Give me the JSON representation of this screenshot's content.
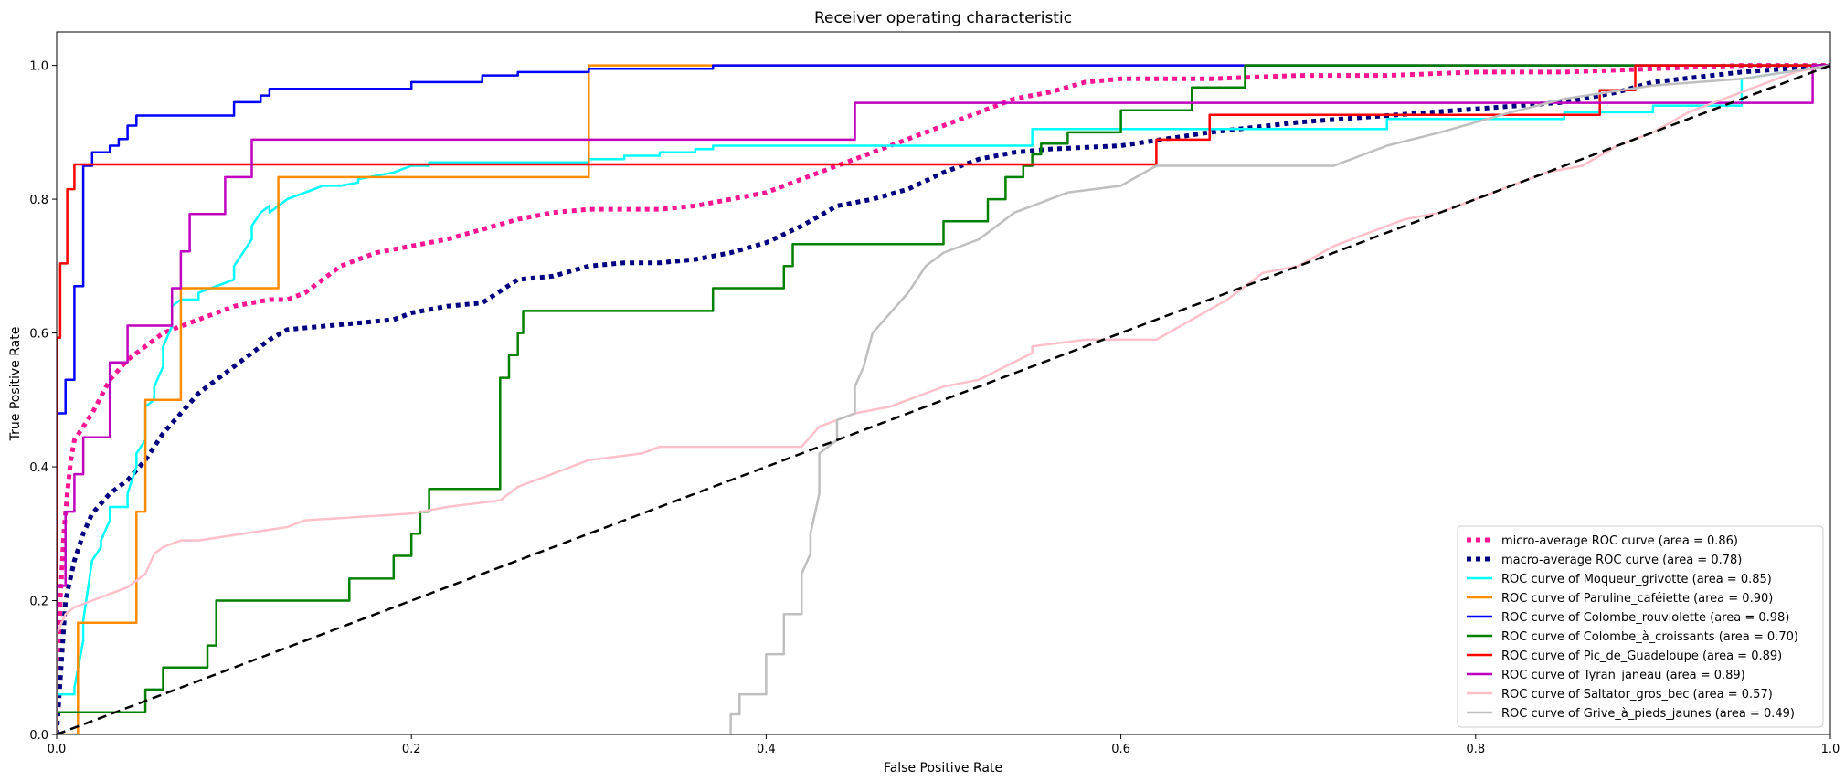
{
  "chart_data": {
    "type": "line",
    "title": "Receiver operating characteristic",
    "xlabel": "False Positive Rate",
    "ylabel": "True Positive Rate",
    "xlim": [
      0.0,
      1.0
    ],
    "ylim": [
      0.0,
      1.05
    ],
    "xticks": [
      "0.0",
      "0.2",
      "0.4",
      "0.6",
      "0.8",
      "1.0"
    ],
    "yticks": [
      "0.0",
      "0.2",
      "0.4",
      "0.6",
      "0.8",
      "1.0"
    ],
    "xtick_values": [
      0.0,
      0.2,
      0.4,
      0.6,
      0.8,
      1.0
    ],
    "ytick_values": [
      0.0,
      0.2,
      0.4,
      0.6,
      0.8,
      1.0
    ],
    "grid": false,
    "legend_position": "lower right",
    "series": [
      {
        "name": "micro-average ROC curve (area = 0.86)",
        "color": "#ff1493",
        "style": "dotted",
        "width": 5,
        "x": [
          0.0,
          0.002,
          0.004,
          0.006,
          0.008,
          0.01,
          0.015,
          0.02,
          0.03,
          0.04,
          0.05,
          0.06,
          0.07,
          0.08,
          0.09,
          0.1,
          0.11,
          0.12,
          0.13,
          0.14,
          0.15,
          0.16,
          0.17,
          0.18,
          0.2,
          0.22,
          0.24,
          0.26,
          0.28,
          0.3,
          0.32,
          0.34,
          0.36,
          0.38,
          0.4,
          0.42,
          0.44,
          0.46,
          0.48,
          0.5,
          0.52,
          0.54,
          0.56,
          0.58,
          0.6,
          0.65,
          0.7,
          0.75,
          0.8,
          0.85,
          0.9,
          0.95,
          1.0
        ],
        "y": [
          0.0,
          0.2,
          0.3,
          0.36,
          0.41,
          0.44,
          0.46,
          0.48,
          0.53,
          0.56,
          0.58,
          0.6,
          0.61,
          0.62,
          0.63,
          0.64,
          0.645,
          0.65,
          0.65,
          0.66,
          0.68,
          0.7,
          0.71,
          0.72,
          0.73,
          0.74,
          0.755,
          0.77,
          0.78,
          0.785,
          0.785,
          0.785,
          0.79,
          0.8,
          0.81,
          0.83,
          0.85,
          0.87,
          0.89,
          0.91,
          0.93,
          0.95,
          0.96,
          0.975,
          0.98,
          0.98,
          0.985,
          0.985,
          0.99,
          0.99,
          0.995,
          1.0,
          1.0
        ]
      },
      {
        "name": "macro-average ROC curve (area = 0.78)",
        "color": "#000080",
        "style": "dotted",
        "width": 5,
        "x": [
          0.0,
          0.005,
          0.01,
          0.015,
          0.02,
          0.03,
          0.04,
          0.05,
          0.06,
          0.07,
          0.08,
          0.09,
          0.1,
          0.11,
          0.12,
          0.13,
          0.15,
          0.17,
          0.19,
          0.2,
          0.22,
          0.24,
          0.26,
          0.28,
          0.3,
          0.32,
          0.34,
          0.36,
          0.38,
          0.4,
          0.42,
          0.44,
          0.46,
          0.48,
          0.5,
          0.52,
          0.54,
          0.56,
          0.6,
          0.65,
          0.7,
          0.75,
          0.8,
          0.85,
          0.88,
          0.9,
          0.95,
          1.0
        ],
        "y": [
          0.0,
          0.2,
          0.26,
          0.3,
          0.33,
          0.36,
          0.38,
          0.41,
          0.45,
          0.48,
          0.51,
          0.53,
          0.55,
          0.57,
          0.59,
          0.605,
          0.61,
          0.615,
          0.62,
          0.63,
          0.64,
          0.645,
          0.68,
          0.685,
          0.7,
          0.705,
          0.705,
          0.71,
          0.72,
          0.735,
          0.76,
          0.79,
          0.8,
          0.815,
          0.84,
          0.86,
          0.87,
          0.875,
          0.88,
          0.9,
          0.915,
          0.925,
          0.935,
          0.945,
          0.96,
          0.975,
          0.99,
          1.0
        ]
      },
      {
        "name": "ROC curve of Moqueur_grivotte (area = 0.85)",
        "color": "#00ffff",
        "style": "solid",
        "width": 2.5,
        "x": [
          0.0,
          0.01,
          0.01,
          0.015,
          0.015,
          0.02,
          0.025,
          0.025,
          0.03,
          0.03,
          0.04,
          0.04,
          0.045,
          0.045,
          0.05,
          0.05,
          0.055,
          0.055,
          0.06,
          0.06,
          0.065,
          0.065,
          0.07,
          0.07,
          0.08,
          0.08,
          0.09,
          0.1,
          0.1,
          0.105,
          0.11,
          0.11,
          0.115,
          0.12,
          0.12,
          0.125,
          0.13,
          0.13,
          0.14,
          0.15,
          0.15,
          0.16,
          0.17,
          0.17,
          0.19,
          0.19,
          0.2,
          0.21,
          0.21,
          0.22,
          0.3,
          0.3,
          0.32,
          0.32,
          0.34,
          0.34,
          0.36,
          0.36,
          0.37,
          0.37,
          0.4,
          0.55,
          0.55,
          0.75,
          0.75,
          0.85,
          0.85,
          0.9,
          0.9,
          0.95,
          0.95,
          1.0
        ],
        "y": [
          0.06,
          0.06,
          0.07,
          0.14,
          0.17,
          0.26,
          0.28,
          0.29,
          0.32,
          0.34,
          0.34,
          0.36,
          0.4,
          0.42,
          0.44,
          0.49,
          0.5,
          0.52,
          0.55,
          0.58,
          0.61,
          0.64,
          0.65,
          0.65,
          0.65,
          0.66,
          0.67,
          0.68,
          0.7,
          0.72,
          0.74,
          0.76,
          0.78,
          0.79,
          0.78,
          0.79,
          0.8,
          0.8,
          0.81,
          0.82,
          0.82,
          0.82,
          0.825,
          0.83,
          0.84,
          0.84,
          0.85,
          0.85,
          0.855,
          0.855,
          0.855,
          0.86,
          0.86,
          0.865,
          0.865,
          0.87,
          0.87,
          0.875,
          0.875,
          0.88,
          0.88,
          0.88,
          0.905,
          0.905,
          0.92,
          0.92,
          0.93,
          0.93,
          0.94,
          0.94,
          0.98,
          1.0
        ]
      },
      {
        "name": "ROC curve of Paruline_caféiette (area = 0.90)",
        "color": "#ff8c00",
        "style": "solid",
        "width": 2.5,
        "x": [
          0.0,
          0.01,
          0.012,
          0.012,
          0.045,
          0.045,
          0.05,
          0.05,
          0.06,
          0.06,
          0.07,
          0.07,
          0.125,
          0.125,
          0.3,
          0.3,
          0.38,
          0.38,
          1.0
        ],
        "y": [
          0.0,
          0.0,
          0.0,
          0.167,
          0.167,
          0.333,
          0.333,
          0.5,
          0.5,
          0.5,
          0.5,
          0.667,
          0.667,
          0.833,
          0.833,
          1.0,
          1.0,
          1.0,
          1.0
        ]
      },
      {
        "name": "ROC curve of Colombe_rouviolette (area = 0.98)",
        "color": "#0000ff",
        "style": "solid",
        "width": 2.5,
        "x": [
          0.0,
          0.0,
          0.005,
          0.005,
          0.01,
          0.01,
          0.015,
          0.015,
          0.02,
          0.02,
          0.03,
          0.03,
          0.035,
          0.035,
          0.04,
          0.04,
          0.045,
          0.045,
          0.1,
          0.1,
          0.115,
          0.115,
          0.12,
          0.12,
          0.2,
          0.2,
          0.24,
          0.24,
          0.26,
          0.26,
          0.3,
          0.3,
          0.37,
          0.37,
          0.67,
          1.0
        ],
        "y": [
          0.0,
          0.48,
          0.48,
          0.53,
          0.53,
          0.67,
          0.67,
          0.85,
          0.85,
          0.87,
          0.87,
          0.88,
          0.88,
          0.89,
          0.89,
          0.91,
          0.91,
          0.925,
          0.925,
          0.945,
          0.945,
          0.955,
          0.955,
          0.965,
          0.965,
          0.975,
          0.975,
          0.985,
          0.985,
          0.99,
          0.99,
          0.995,
          0.995,
          1.0,
          1.0,
          1.0
        ]
      },
      {
        "name": "ROC curve of Colombe_à_croissants (area = 0.70)",
        "color": "#008000",
        "style": "solid",
        "width": 2.5,
        "x": [
          0.0,
          0.05,
          0.05,
          0.06,
          0.06,
          0.085,
          0.085,
          0.09,
          0.09,
          0.165,
          0.165,
          0.19,
          0.19,
          0.2,
          0.2,
          0.205,
          0.205,
          0.21,
          0.21,
          0.25,
          0.25,
          0.255,
          0.255,
          0.26,
          0.26,
          0.263,
          0.263,
          0.37,
          0.37,
          0.41,
          0.41,
          0.415,
          0.415,
          0.5,
          0.5,
          0.525,
          0.525,
          0.535,
          0.535,
          0.545,
          0.545,
          0.55,
          0.55,
          0.555,
          0.555,
          0.57,
          0.57,
          0.6,
          0.6,
          0.64,
          0.64,
          0.67,
          0.67,
          1.0
        ],
        "y": [
          0.033,
          0.033,
          0.067,
          0.067,
          0.1,
          0.1,
          0.133,
          0.133,
          0.2,
          0.2,
          0.233,
          0.233,
          0.267,
          0.267,
          0.3,
          0.3,
          0.333,
          0.333,
          0.367,
          0.367,
          0.533,
          0.533,
          0.567,
          0.567,
          0.6,
          0.6,
          0.633,
          0.633,
          0.667,
          0.667,
          0.7,
          0.7,
          0.733,
          0.733,
          0.767,
          0.767,
          0.8,
          0.8,
          0.833,
          0.833,
          0.85,
          0.85,
          0.867,
          0.867,
          0.883,
          0.883,
          0.9,
          0.9,
          0.933,
          0.933,
          0.967,
          0.967,
          1.0,
          1.0
        ]
      },
      {
        "name": "ROC curve of Pic_de_Guadeloupe (area = 0.89)",
        "color": "#ff0000",
        "style": "solid",
        "width": 2.5,
        "x": [
          0.0,
          0.0,
          0.002,
          0.002,
          0.006,
          0.006,
          0.01,
          0.01,
          0.62,
          0.62,
          0.65,
          0.65,
          0.87,
          0.87,
          0.89,
          0.89,
          1.0
        ],
        "y": [
          0.0,
          0.593,
          0.593,
          0.704,
          0.704,
          0.815,
          0.815,
          0.852,
          0.852,
          0.889,
          0.889,
          0.926,
          0.926,
          0.963,
          0.963,
          1.0,
          1.0
        ]
      },
      {
        "name": "ROC curve of Tyran_janeau (area = 0.89)",
        "color": "#bf00bf",
        "style": "solid",
        "width": 2.5,
        "x": [
          0.0,
          0.0,
          0.005,
          0.005,
          0.01,
          0.01,
          0.015,
          0.015,
          0.02,
          0.02,
          0.03,
          0.03,
          0.04,
          0.04,
          0.065,
          0.065,
          0.07,
          0.07,
          0.075,
          0.075,
          0.085,
          0.085,
          0.095,
          0.095,
          0.11,
          0.11,
          0.45,
          0.45,
          0.95,
          0.95,
          0.99,
          0.99,
          1.0
        ],
        "y": [
          0.0,
          0.222,
          0.222,
          0.333,
          0.333,
          0.389,
          0.389,
          0.444,
          0.444,
          0.444,
          0.444,
          0.556,
          0.556,
          0.611,
          0.611,
          0.667,
          0.667,
          0.722,
          0.722,
          0.778,
          0.778,
          0.778,
          0.778,
          0.833,
          0.833,
          0.889,
          0.889,
          0.944,
          0.944,
          0.944,
          0.944,
          1.0,
          1.0
        ]
      },
      {
        "name": "ROC curve of Saltator_gros_bec (area = 0.57)",
        "color": "#ffc0cb",
        "style": "solid",
        "width": 2.5,
        "x": [
          0.0,
          0.0,
          0.005,
          0.01,
          0.02,
          0.03,
          0.04,
          0.05,
          0.055,
          0.06,
          0.07,
          0.08,
          0.13,
          0.14,
          0.2,
          0.22,
          0.25,
          0.26,
          0.27,
          0.28,
          0.29,
          0.3,
          0.33,
          0.34,
          0.36,
          0.38,
          0.42,
          0.43,
          0.45,
          0.47,
          0.5,
          0.52,
          0.55,
          0.55,
          0.58,
          0.62,
          0.64,
          0.66,
          0.68,
          0.7,
          0.72,
          0.74,
          0.76,
          0.78,
          0.8,
          0.82,
          0.84,
          0.86,
          0.88,
          0.9,
          0.92,
          0.94,
          0.96,
          0.98,
          1.0
        ],
        "y": [
          0.0,
          0.15,
          0.18,
          0.19,
          0.2,
          0.21,
          0.22,
          0.24,
          0.27,
          0.28,
          0.29,
          0.29,
          0.31,
          0.32,
          0.33,
          0.34,
          0.35,
          0.37,
          0.38,
          0.39,
          0.4,
          0.41,
          0.42,
          0.43,
          0.43,
          0.43,
          0.43,
          0.46,
          0.48,
          0.49,
          0.52,
          0.53,
          0.57,
          0.58,
          0.59,
          0.59,
          0.62,
          0.65,
          0.69,
          0.7,
          0.73,
          0.75,
          0.77,
          0.78,
          0.8,
          0.82,
          0.84,
          0.85,
          0.88,
          0.9,
          0.93,
          0.95,
          0.97,
          0.99,
          1.0
        ]
      },
      {
        "name": "ROC curve of Grive_à_pieds_jaunes (area = 0.49)",
        "color": "#bfbfbf",
        "style": "solid",
        "width": 2.5,
        "x": [
          0.38,
          0.38,
          0.385,
          0.385,
          0.4,
          0.4,
          0.41,
          0.41,
          0.42,
          0.42,
          0.425,
          0.425,
          0.43,
          0.43,
          0.44,
          0.44,
          0.45,
          0.45,
          0.455,
          0.46,
          0.47,
          0.48,
          0.49,
          0.5,
          0.52,
          0.53,
          0.54,
          0.55,
          0.56,
          0.57,
          0.6,
          0.62,
          0.65,
          0.68,
          0.72,
          0.75,
          0.78,
          0.82,
          0.85,
          0.9,
          0.95,
          1.0
        ],
        "y": [
          0.0,
          0.03,
          0.03,
          0.06,
          0.06,
          0.12,
          0.12,
          0.18,
          0.18,
          0.24,
          0.27,
          0.3,
          0.36,
          0.42,
          0.44,
          0.47,
          0.48,
          0.52,
          0.55,
          0.6,
          0.63,
          0.66,
          0.7,
          0.72,
          0.74,
          0.76,
          0.78,
          0.79,
          0.8,
          0.81,
          0.82,
          0.85,
          0.85,
          0.85,
          0.85,
          0.88,
          0.9,
          0.93,
          0.95,
          0.97,
          0.98,
          1.0
        ]
      }
    ],
    "reference_line": {
      "x": [
        0,
        1
      ],
      "y": [
        0,
        1
      ],
      "color": "#000000",
      "style": "dashed"
    }
  }
}
